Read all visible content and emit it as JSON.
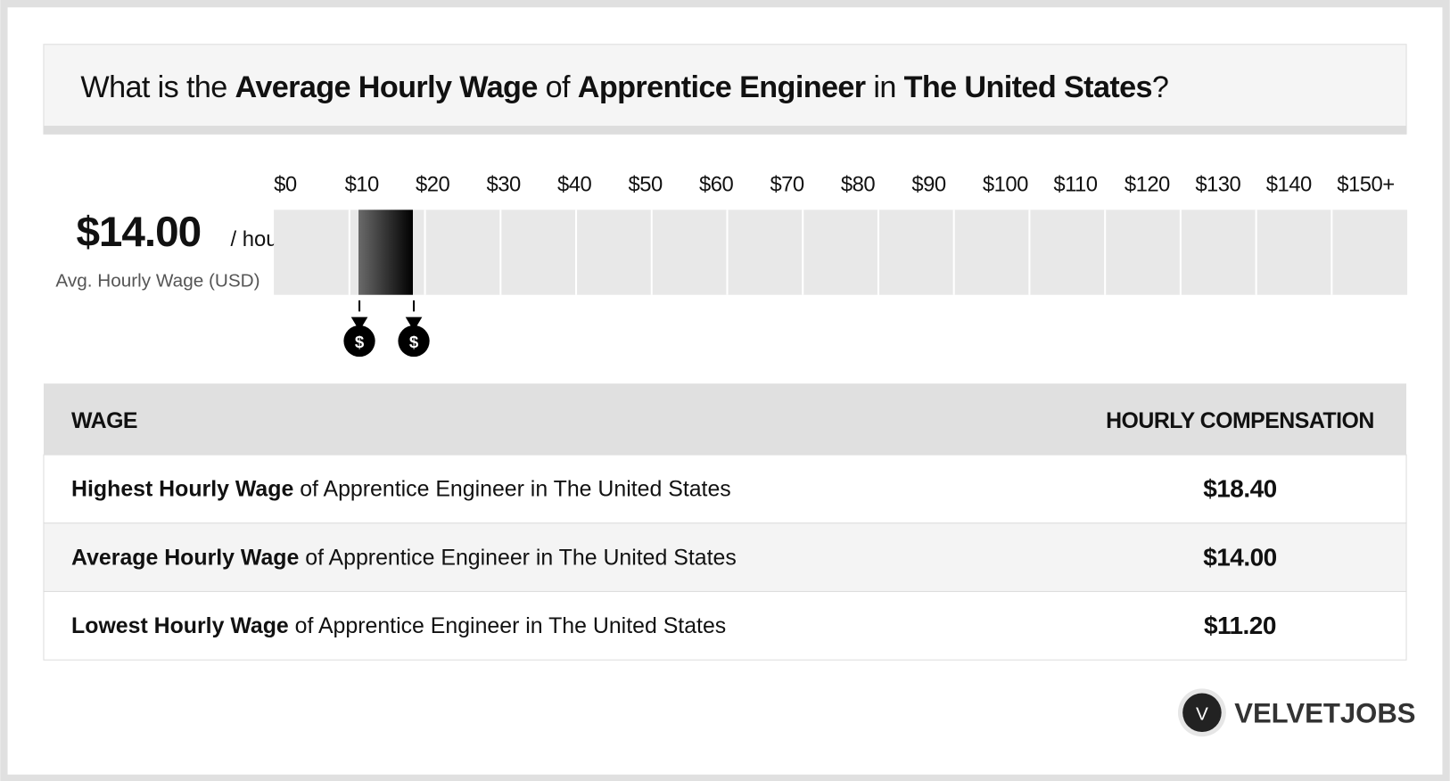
{
  "header": {
    "title": [
      "What is the ",
      "Average Hourly Wage",
      " of ",
      "Apprentice Engineer",
      " in ",
      "The United States",
      "?"
    ]
  },
  "summary": {
    "value": "$14.00",
    "unit": "/ hour",
    "label": "Avg. Hourly Wage (USD)"
  },
  "chart_data": {
    "type": "range",
    "xlim": [
      0,
      150
    ],
    "xticks": [
      {
        "value": 0,
        "label": "$0"
      },
      {
        "value": 10,
        "label": "$10"
      },
      {
        "value": 20,
        "label": "$20"
      },
      {
        "value": 30,
        "label": "$30"
      },
      {
        "value": 40,
        "label": "$40"
      },
      {
        "value": 50,
        "label": "$50"
      },
      {
        "value": 60,
        "label": "$60"
      },
      {
        "value": 70,
        "label": "$70"
      },
      {
        "value": 80,
        "label": "$80"
      },
      {
        "value": 90,
        "label": "$90"
      },
      {
        "value": 100,
        "label": "$100"
      },
      {
        "value": 110,
        "label": "$110"
      },
      {
        "value": 120,
        "label": "$120"
      },
      {
        "value": 130,
        "label": "$130"
      },
      {
        "value": 140,
        "label": "$140"
      },
      {
        "value": 150,
        "label": "$150+"
      }
    ],
    "low": 11.2,
    "high": 18.4,
    "color": "#000000"
  },
  "table": {
    "columns": [
      "WAGE",
      "HOURLY COMPENSATION"
    ],
    "rows": [
      [
        [
          "Highest Hourly Wage",
          " of Apprentice Engineer in The United States"
        ],
        "$18.40"
      ],
      [
        [
          "Average Hourly Wage",
          " of Apprentice Engineer in The United States"
        ],
        "$14.00"
      ],
      [
        [
          "Lowest Hourly Wage",
          " of Apprentice Engineer in The United States"
        ],
        "$11.20"
      ]
    ]
  },
  "brand": {
    "logo": "V",
    "name": "VELVETJOBS"
  }
}
